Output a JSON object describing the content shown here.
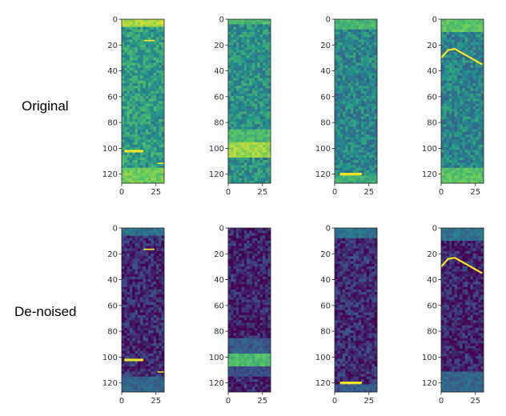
{
  "rows": {
    "original_label": "Original",
    "denoised_label": "De-noised"
  },
  "colormap": {
    "name": "viridis",
    "stops": [
      "#440154",
      "#3b528b",
      "#21918c",
      "#5ec962",
      "#fde725"
    ]
  },
  "chart_data": [
    {
      "type": "heatmap",
      "row": "Original",
      "col": 1,
      "xlim": [
        0,
        31
      ],
      "ylim": [
        0,
        127
      ],
      "y_inverted": true,
      "xticks": [
        0,
        25
      ],
      "yticks": [
        0,
        20,
        40,
        60,
        80,
        100,
        120
      ],
      "base_level": 0.55,
      "bands": [
        {
          "y": 0,
          "y2": 5,
          "x0": 0,
          "x1": 31,
          "level": 0.95
        },
        {
          "y": 16,
          "y2": 16.8,
          "x0": 16,
          "x1": 24,
          "level": 1.0
        },
        {
          "y": 101.5,
          "y2": 102.5,
          "x0": 2,
          "x1": 16,
          "level": 1.0
        },
        {
          "y": 111,
          "y2": 112,
          "x0": 26,
          "x1": 31,
          "level": 0.95
        },
        {
          "y": 115,
          "y2": 127,
          "x0": 0,
          "x1": 31,
          "level": 0.85
        }
      ]
    },
    {
      "type": "heatmap",
      "row": "Original",
      "col": 2,
      "xlim": [
        0,
        31
      ],
      "ylim": [
        0,
        127
      ],
      "y_inverted": true,
      "xticks": [
        0,
        25
      ],
      "yticks": [
        0,
        20,
        40,
        60,
        80,
        100,
        120
      ],
      "base_level": 0.5,
      "bands": [
        {
          "y": 0,
          "y2": 3,
          "x0": 0,
          "x1": 31,
          "level": 0.75
        },
        {
          "y": 85,
          "y2": 96,
          "x0": 0,
          "x1": 31,
          "level": 0.75
        },
        {
          "y": 96,
          "y2": 108,
          "x0": 0,
          "x1": 31,
          "level": 0.92
        }
      ]
    },
    {
      "type": "heatmap",
      "row": "Original",
      "col": 3,
      "xlim": [
        0,
        31
      ],
      "ylim": [
        0,
        127
      ],
      "y_inverted": true,
      "xticks": [
        0,
        25
      ],
      "yticks": [
        0,
        20,
        40,
        60,
        80,
        100,
        120
      ],
      "base_level": 0.45,
      "bands": [
        {
          "y": 0,
          "y2": 8,
          "x0": 0,
          "x1": 31,
          "level": 0.75
        },
        {
          "y": 119,
          "y2": 120.5,
          "x0": 4,
          "x1": 20,
          "level": 1.0
        },
        {
          "y": 121,
          "y2": 127,
          "x0": 0,
          "x1": 31,
          "level": 0.7
        }
      ]
    },
    {
      "type": "heatmap",
      "row": "Original",
      "col": 4,
      "xlim": [
        0,
        31
      ],
      "ylim": [
        0,
        127
      ],
      "y_inverted": true,
      "xticks": [
        0,
        25
      ],
      "yticks": [
        0,
        20,
        40,
        60,
        80,
        100,
        120
      ],
      "base_level": 0.45,
      "bands": [
        {
          "y": 0,
          "y2": 10,
          "x0": 0,
          "x1": 31,
          "level": 0.8
        },
        {
          "y": 115,
          "y2": 127,
          "x0": 0,
          "x1": 31,
          "level": 0.8
        }
      ],
      "curve": {
        "x": [
          0,
          5,
          10,
          15,
          20,
          25,
          30
        ],
        "y": [
          30,
          24,
          23,
          26,
          29,
          32,
          35
        ],
        "level": 1.0
      }
    },
    {
      "type": "heatmap",
      "row": "De-noised",
      "col": 1,
      "xlim": [
        0,
        31
      ],
      "ylim": [
        0,
        127
      ],
      "y_inverted": true,
      "xticks": [
        0,
        25
      ],
      "yticks": [
        0,
        20,
        40,
        60,
        80,
        100,
        120
      ],
      "base_level": 0.12,
      "bands": [
        {
          "y": 0,
          "y2": 6,
          "x0": 0,
          "x1": 31,
          "level": 0.45
        },
        {
          "y": 16,
          "y2": 16.8,
          "x0": 16,
          "x1": 24,
          "level": 1.0
        },
        {
          "y": 101.5,
          "y2": 102.5,
          "x0": 2,
          "x1": 16,
          "level": 1.0
        },
        {
          "y": 111,
          "y2": 112,
          "x0": 26,
          "x1": 31,
          "level": 0.95
        },
        {
          "y": 116,
          "y2": 127,
          "x0": 0,
          "x1": 31,
          "level": 0.4
        }
      ]
    },
    {
      "type": "heatmap",
      "row": "De-noised",
      "col": 2,
      "xlim": [
        0,
        31
      ],
      "ylim": [
        0,
        127
      ],
      "y_inverted": true,
      "xticks": [
        0,
        25
      ],
      "yticks": [
        0,
        20,
        40,
        60,
        80,
        100,
        120
      ],
      "base_level": 0.1,
      "bands": [
        {
          "y": 85,
          "y2": 98,
          "x0": 0,
          "x1": 31,
          "level": 0.35
        },
        {
          "y": 98,
          "y2": 107,
          "x0": 0,
          "x1": 31,
          "level": 0.75
        },
        {
          "y": 107,
          "y2": 115,
          "x0": 0,
          "x1": 31,
          "level": 0.3
        }
      ]
    },
    {
      "type": "heatmap",
      "row": "De-noised",
      "col": 3,
      "xlim": [
        0,
        31
      ],
      "ylim": [
        0,
        127
      ],
      "y_inverted": true,
      "xticks": [
        0,
        25
      ],
      "yticks": [
        0,
        20,
        40,
        60,
        80,
        100,
        120
      ],
      "base_level": 0.12,
      "bands": [
        {
          "y": 0,
          "y2": 8,
          "x0": 0,
          "x1": 31,
          "level": 0.45
        },
        {
          "y": 119,
          "y2": 120.5,
          "x0": 4,
          "x1": 20,
          "level": 1.0
        },
        {
          "y": 121,
          "y2": 127,
          "x0": 0,
          "x1": 31,
          "level": 0.35
        }
      ]
    },
    {
      "type": "heatmap",
      "row": "De-noised",
      "col": 4,
      "xlim": [
        0,
        31
      ],
      "ylim": [
        0,
        127
      ],
      "y_inverted": true,
      "xticks": [
        0,
        25
      ],
      "yticks": [
        0,
        20,
        40,
        60,
        80,
        100,
        120
      ],
      "base_level": 0.1,
      "bands": [
        {
          "y": 0,
          "y2": 10,
          "x0": 0,
          "x1": 31,
          "level": 0.45
        },
        {
          "y": 112,
          "y2": 127,
          "x0": 0,
          "x1": 31,
          "level": 0.4
        }
      ],
      "curve": {
        "x": [
          0,
          5,
          10,
          15,
          20,
          25,
          30
        ],
        "y": [
          30,
          24,
          23,
          26,
          29,
          32,
          35
        ],
        "level": 1.0
      }
    }
  ]
}
